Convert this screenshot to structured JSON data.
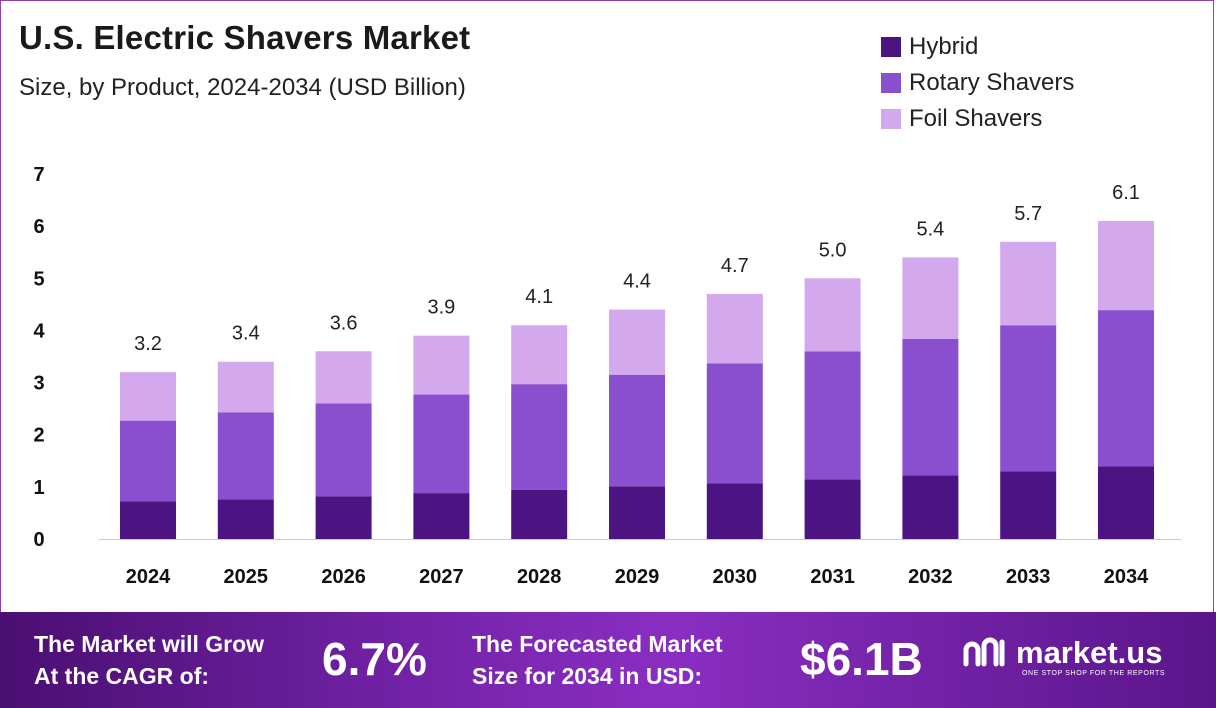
{
  "title": "U.S. Electric Shavers Market",
  "subtitle": "Size, by Product, 2024-2034 (USD Billion)",
  "legend": [
    {
      "label": "Hybrid",
      "color": "#4b1482"
    },
    {
      "label": "Rotary Shavers",
      "color": "#8a4fce"
    },
    {
      "label": "Foil Shavers",
      "color": "#d4a8ec"
    }
  ],
  "chart_data": {
    "type": "bar",
    "stacked": true,
    "categories": [
      "2024",
      "2025",
      "2026",
      "2027",
      "2028",
      "2029",
      "2030",
      "2031",
      "2032",
      "2033",
      "2034"
    ],
    "series": [
      {
        "name": "Hybrid",
        "color": "#4b1482",
        "values": [
          0.72,
          0.76,
          0.82,
          0.88,
          0.94,
          1.01,
          1.07,
          1.14,
          1.22,
          1.3,
          1.39
        ]
      },
      {
        "name": "Rotary Shavers",
        "color": "#8a4fce",
        "values": [
          1.55,
          1.67,
          1.78,
          1.89,
          2.03,
          2.14,
          2.3,
          2.46,
          2.62,
          2.8,
          3.0
        ]
      },
      {
        "name": "Foil Shavers",
        "color": "#d4a8ec",
        "values": [
          0.93,
          0.97,
          1.0,
          1.13,
          1.13,
          1.25,
          1.33,
          1.4,
          1.56,
          1.6,
          1.71
        ]
      }
    ],
    "totals": [
      "3.2",
      "3.4",
      "3.6",
      "3.9",
      "4.1",
      "4.4",
      "4.7",
      "5.0",
      "5.4",
      "5.7",
      "6.1"
    ],
    "y_ticks": [
      "0",
      "1",
      "2",
      "3",
      "4",
      "5",
      "6",
      "7"
    ],
    "ylim": [
      0,
      7
    ],
    "grid": false,
    "legend_position": "top-right"
  },
  "banner": {
    "cagr_label_line1": "The Market will Grow",
    "cagr_label_line2": "At the CAGR of:",
    "cagr_value": "6.7%",
    "forecast_label_line1": "The Forecasted Market",
    "forecast_label_line2": "Size for 2034 in USD:",
    "forecast_value": "$6.1B",
    "brand_name": "market.us",
    "brand_tagline": "ONE STOP SHOP FOR THE REPORTS"
  }
}
